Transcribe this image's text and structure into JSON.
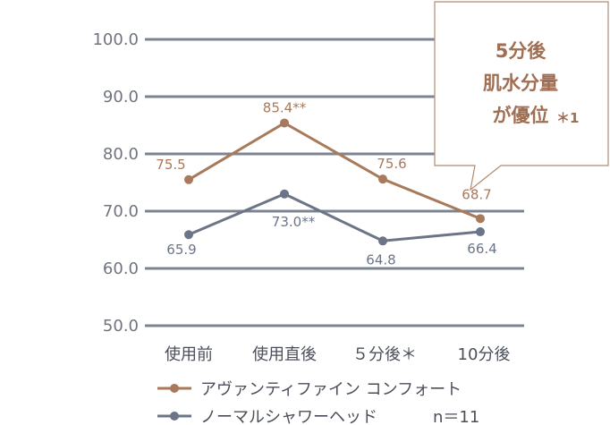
{
  "chart_data": {
    "type": "line",
    "categories": [
      "使用前",
      "使用直後",
      "５分後＊",
      "10分後"
    ],
    "y_ticks": [
      "100.0",
      "90.0",
      "80.0",
      "70.0",
      "60.0",
      "50.0"
    ],
    "ylim": [
      50,
      100
    ],
    "grid": true,
    "series": [
      {
        "name": "アヴァンティファイン コンフォート",
        "color": "#a8795a",
        "values": [
          75.5,
          85.4,
          75.6,
          68.7
        ],
        "labels": [
          "75.5",
          "85.4**",
          "75.6",
          "68.7"
        ]
      },
      {
        "name": "ノーマルシャワーヘッド",
        "color": "#6b7587",
        "values": [
          65.9,
          73.0,
          64.8,
          66.4
        ],
        "labels": [
          "65.9",
          "73.0**",
          "64.8",
          "66.4"
        ]
      }
    ],
    "sample_size": "n＝11",
    "callout": {
      "lines": [
        "5分後",
        "肌水分量",
        "が優位"
      ],
      "mark": "＊1"
    }
  }
}
